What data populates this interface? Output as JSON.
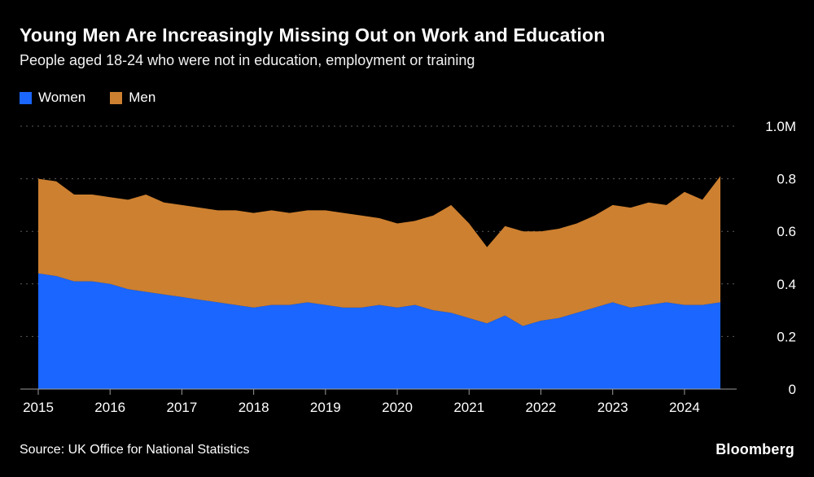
{
  "footer": {
    "source": "Source: UK Office for National Statistics",
    "brand": "Bloomberg"
  },
  "chart_data": {
    "type": "area",
    "stacked": true,
    "title": "Young Men Are Increasingly Missing Out on Work and Education",
    "subtitle": "People aged 18-24 who were not in education, employment or training",
    "unit": "millions of people",
    "legend_position": "top-left",
    "grid": "dashed-horizontal",
    "xlim": [
      2015,
      2024.5
    ],
    "ylim": [
      0,
      1.0
    ],
    "xticks": [
      2015,
      2016,
      2017,
      2018,
      2019,
      2020,
      2021,
      2022,
      2023,
      2024
    ],
    "yticks": [
      0,
      0.2,
      0.4,
      0.6,
      0.8,
      1.0
    ],
    "ytick_labels": [
      "0",
      "0.2",
      "0.4",
      "0.6",
      "0.8",
      "1.0M"
    ],
    "x": [
      2015,
      2015.25,
      2015.5,
      2015.75,
      2016,
      2016.25,
      2016.5,
      2016.75,
      2017,
      2017.25,
      2017.5,
      2017.75,
      2018,
      2018.25,
      2018.5,
      2018.75,
      2019,
      2019.25,
      2019.5,
      2019.75,
      2020,
      2020.25,
      2020.5,
      2020.75,
      2021,
      2021.25,
      2021.5,
      2021.75,
      2022,
      2022.25,
      2022.5,
      2022.75,
      2023,
      2023.25,
      2023.5,
      2023.75,
      2024,
      2024.25,
      2024.5
    ],
    "series": [
      {
        "name": "Women",
        "color": "#1a66ff",
        "values": [
          0.44,
          0.43,
          0.41,
          0.41,
          0.4,
          0.38,
          0.37,
          0.36,
          0.35,
          0.34,
          0.33,
          0.32,
          0.31,
          0.32,
          0.32,
          0.33,
          0.32,
          0.31,
          0.31,
          0.32,
          0.31,
          0.32,
          0.3,
          0.29,
          0.27,
          0.25,
          0.28,
          0.24,
          0.26,
          0.27,
          0.29,
          0.31,
          0.33,
          0.31,
          0.32,
          0.33,
          0.32,
          0.32,
          0.33
        ]
      },
      {
        "name": "Men",
        "color": "#cd8030",
        "values": [
          0.36,
          0.36,
          0.33,
          0.33,
          0.33,
          0.34,
          0.37,
          0.35,
          0.35,
          0.35,
          0.35,
          0.36,
          0.36,
          0.36,
          0.35,
          0.35,
          0.36,
          0.36,
          0.35,
          0.33,
          0.32,
          0.32,
          0.36,
          0.41,
          0.36,
          0.29,
          0.34,
          0.36,
          0.34,
          0.34,
          0.34,
          0.35,
          0.37,
          0.38,
          0.39,
          0.37,
          0.43,
          0.4,
          0.48
        ]
      }
    ]
  }
}
